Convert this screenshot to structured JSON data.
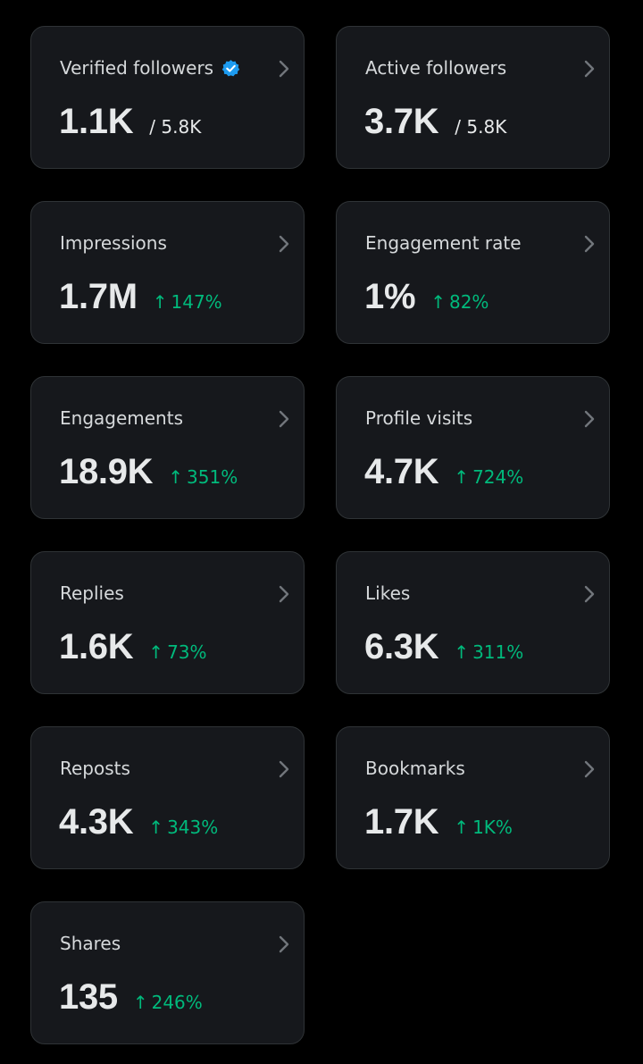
{
  "colors": {
    "background": "#000000",
    "card_background": "#16181c",
    "card_border": "#2f3336",
    "positive_change": "#00ba7c",
    "verified_badge": "#1d9bf0"
  },
  "metrics": [
    {
      "label": "Verified followers",
      "value": "1.1K",
      "total": "/ 5.8K",
      "verified_icon": true
    },
    {
      "label": "Active followers",
      "value": "3.7K",
      "total": "/ 5.8K"
    },
    {
      "label": "Impressions",
      "value": "1.7M",
      "arrow": "↑",
      "change": "147%"
    },
    {
      "label": "Engagement rate",
      "value": "1%",
      "arrow": "↑",
      "change": "82%"
    },
    {
      "label": "Engagements",
      "value": "18.9K",
      "arrow": "↑",
      "change": "351%"
    },
    {
      "label": "Profile visits",
      "value": "4.7K",
      "arrow": "↑",
      "change": "724%"
    },
    {
      "label": "Replies",
      "value": "1.6K",
      "arrow": "↑",
      "change": "73%"
    },
    {
      "label": "Likes",
      "value": "6.3K",
      "arrow": "↑",
      "change": "311%"
    },
    {
      "label": "Reposts",
      "value": "4.3K",
      "arrow": "↑",
      "change": "343%"
    },
    {
      "label": "Bookmarks",
      "value": "1.7K",
      "arrow": "↑",
      "change": "1K%"
    },
    {
      "label": "Shares",
      "value": "135",
      "arrow": "↑",
      "change": "246%"
    }
  ]
}
